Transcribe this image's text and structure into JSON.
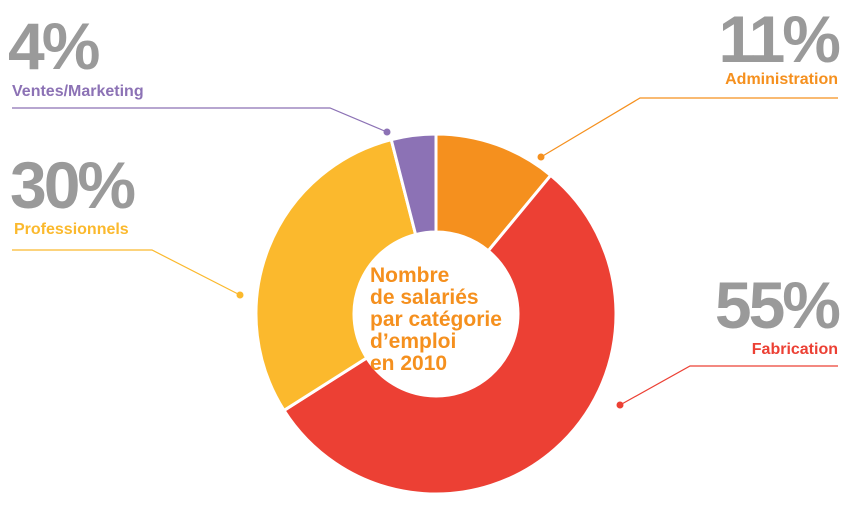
{
  "chart_data": {
    "type": "donut",
    "title": [
      "Nombre",
      "de salariés",
      "par catégorie",
      "d’emploi",
      "en 2010"
    ],
    "categories": [
      "Administration",
      "Fabrication",
      "Professionnels",
      "Ventes/Marketing"
    ],
    "values": [
      11,
      55,
      30,
      4
    ],
    "value_labels": [
      "11%",
      "55%",
      "30%",
      "4%"
    ],
    "colors": [
      "#f5901e",
      "#ec4034",
      "#fbb92d",
      "#8c72b5"
    ]
  }
}
